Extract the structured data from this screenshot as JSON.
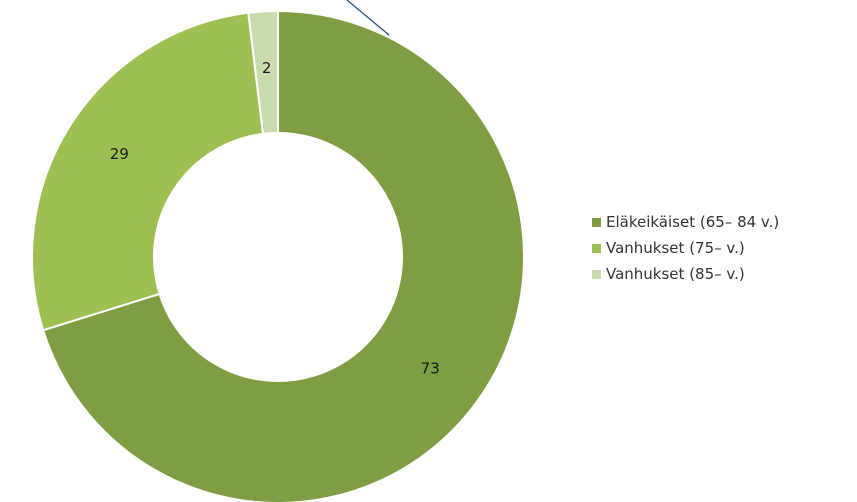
{
  "chart_data": {
    "type": "pie",
    "style": "donut",
    "legend_position": "right",
    "slices": [
      {
        "label": "Eläkeikäiset (65– 84 v.)",
        "value": 73,
        "color": "#7f9e44"
      },
      {
        "label": "Vanhukset (75– v.)",
        "value": 29,
        "color": "#9dc052"
      },
      {
        "label": "Vanhukset (85– v.)",
        "value": 2,
        "color": "#c8dcae"
      }
    ]
  }
}
